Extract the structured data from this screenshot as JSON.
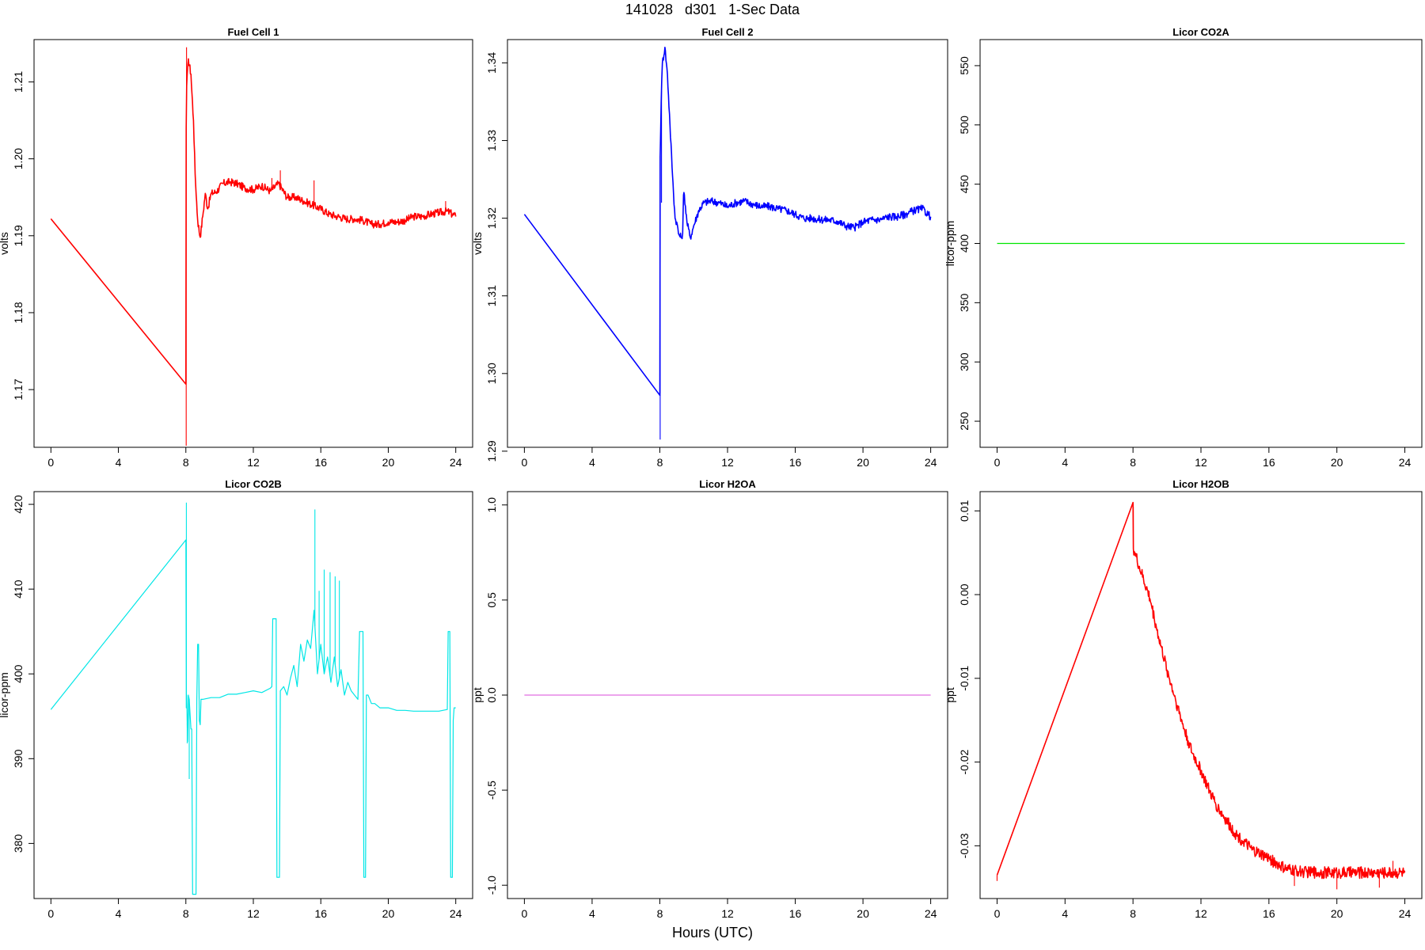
{
  "page": {
    "title": "141028   d301   1-Sec Data",
    "x_axis_title": "Hours (UTC)"
  },
  "chart_data": [
    {
      "type": "line",
      "title": "Fuel Cell 1",
      "ylabel": "volts",
      "xlim": [
        -1,
        25
      ],
      "ylim": [
        1.1625,
        1.2155
      ],
      "xticks": [
        0,
        4,
        8,
        12,
        16,
        20,
        24
      ],
      "yticks": [
        1.17,
        1.18,
        1.19,
        1.2,
        1.21
      ],
      "ytick_labels": [
        "1.17",
        "1.18",
        "1.19",
        "1.20",
        "1.21"
      ],
      "color": "#ff0000",
      "noise": 0.0005,
      "spikes": [
        [
          8.02,
          1.1627
        ],
        [
          8.04,
          1.2145
        ],
        [
          13.1,
          1.1975
        ],
        [
          13.6,
          1.1985
        ],
        [
          15.6,
          1.1972
        ],
        [
          23.4,
          1.1945
        ]
      ],
      "x": [
        0,
        8.0,
        8.02,
        8.05,
        8.15,
        8.3,
        8.45,
        8.55,
        8.7,
        8.85,
        9.0,
        9.15,
        9.3,
        9.5,
        9.8,
        10.2,
        10.6,
        11.0,
        11.5,
        12.0,
        12.5,
        13.0,
        13.5,
        14.0,
        14.5,
        15.0,
        15.5,
        16.0,
        16.5,
        17.0,
        17.5,
        18.0,
        18.5,
        19.0,
        19.5,
        20.0,
        20.5,
        21.0,
        21.5,
        22.0,
        22.5,
        23.0,
        23.5,
        24.0
      ],
      "y": [
        1.1922,
        1.1707,
        1.204,
        1.2095,
        1.213,
        1.211,
        1.205,
        1.198,
        1.192,
        1.1898,
        1.1925,
        1.1955,
        1.1935,
        1.1955,
        1.1957,
        1.1968,
        1.197,
        1.1968,
        1.1962,
        1.196,
        1.1965,
        1.1958,
        1.1968,
        1.195,
        1.195,
        1.1945,
        1.194,
        1.1935,
        1.1928,
        1.1925,
        1.1922,
        1.1922,
        1.192,
        1.1915,
        1.1915,
        1.1918,
        1.1918,
        1.192,
        1.1925,
        1.1925,
        1.1928,
        1.193,
        1.1932,
        1.1925
      ]
    },
    {
      "type": "line",
      "title": "Fuel Cell 2",
      "ylabel": "volts",
      "xlim": [
        -1,
        25
      ],
      "ylim": [
        1.2905,
        1.343
      ],
      "xticks": [
        0,
        4,
        8,
        12,
        16,
        20,
        24
      ],
      "yticks": [
        1.29,
        1.3,
        1.31,
        1.32,
        1.33,
        1.34
      ],
      "ytick_labels": [
        "1.29",
        "1.30",
        "1.31",
        "1.32",
        "1.33",
        "1.34"
      ],
      "color": "#0000ff",
      "noise": 0.0005,
      "spikes": [
        [
          8.02,
          1.2915
        ],
        [
          8.1,
          1.322
        ]
      ],
      "x": [
        0,
        8.0,
        8.02,
        8.08,
        8.15,
        8.3,
        8.45,
        8.6,
        8.75,
        8.9,
        9.0,
        9.1,
        9.25,
        9.35,
        9.4,
        9.45,
        9.6,
        9.8,
        10.0,
        10.3,
        10.6,
        11.0,
        11.5,
        12.0,
        12.5,
        13.0,
        13.5,
        14.0,
        14.5,
        15.0,
        15.5,
        16.0,
        16.5,
        17.0,
        17.5,
        18.0,
        18.5,
        19.0,
        19.5,
        20.0,
        20.5,
        21.0,
        21.5,
        22.0,
        22.5,
        23.0,
        23.5,
        24.0
      ],
      "y": [
        1.3205,
        1.2972,
        1.328,
        1.335,
        1.34,
        1.342,
        1.3385,
        1.332,
        1.3255,
        1.32,
        1.3195,
        1.318,
        1.3175,
        1.318,
        1.323,
        1.323,
        1.3195,
        1.3175,
        1.319,
        1.321,
        1.322,
        1.3222,
        1.322,
        1.3215,
        1.322,
        1.3222,
        1.3218,
        1.3215,
        1.3215,
        1.3212,
        1.321,
        1.3205,
        1.32,
        1.32,
        1.3198,
        1.3198,
        1.3196,
        1.319,
        1.3188,
        1.3195,
        1.3198,
        1.3198,
        1.3202,
        1.3202,
        1.3205,
        1.321,
        1.3212,
        1.3202
      ]
    },
    {
      "type": "line",
      "title": "Licor CO2A",
      "ylabel": "licor-ppm",
      "xlim": [
        -1,
        25
      ],
      "ylim": [
        228,
        572
      ],
      "xticks": [
        0,
        4,
        8,
        12,
        16,
        20,
        24
      ],
      "yticks": [
        250,
        300,
        350,
        400,
        450,
        500,
        550
      ],
      "ytick_labels": [
        "250",
        "300",
        "350",
        "400",
        "450",
        "500",
        "550"
      ],
      "color": "#00e600",
      "noise": 0,
      "spikes": [],
      "x": [
        0,
        24
      ],
      "y": [
        400,
        400
      ]
    },
    {
      "type": "line",
      "title": "Licor CO2B",
      "ylabel": "licor-ppm",
      "xlim": [
        -1,
        25
      ],
      "ylim": [
        373.5,
        421.5
      ],
      "xticks": [
        0,
        4,
        8,
        12,
        16,
        20,
        24
      ],
      "yticks": [
        380,
        390,
        400,
        410,
        420
      ],
      "ytick_labels": [
        "380",
        "390",
        "400",
        "410",
        "420"
      ],
      "color": "#00e6e6",
      "noise": 0,
      "spikes": [
        [
          8.03,
          420.2
        ],
        [
          8.08,
          391.8
        ],
        [
          8.2,
          387.6
        ],
        [
          15.65,
          419.4
        ],
        [
          15.9,
          409.8
        ],
        [
          16.2,
          412.3
        ],
        [
          16.55,
          412.0
        ],
        [
          16.85,
          411.5
        ],
        [
          17.1,
          411.0
        ]
      ],
      "x": [
        0,
        8.0,
        8.03,
        8.05,
        8.1,
        8.15,
        8.2,
        8.3,
        8.35,
        8.4,
        8.45,
        8.55,
        8.6,
        8.65,
        8.7,
        8.75,
        8.8,
        8.85,
        8.9,
        9.0,
        9.5,
        10.0,
        10.5,
        11.0,
        11.5,
        12.0,
        12.5,
        13.0,
        13.1,
        13.15,
        13.35,
        13.4,
        13.5,
        13.55,
        13.6,
        13.8,
        14.0,
        14.2,
        14.4,
        14.6,
        14.8,
        15.0,
        15.2,
        15.4,
        15.6,
        15.8,
        16.0,
        16.2,
        16.4,
        16.6,
        16.8,
        17.0,
        17.2,
        17.4,
        17.6,
        17.8,
        18.0,
        18.2,
        18.3,
        18.35,
        18.5,
        18.55,
        18.65,
        18.7,
        18.8,
        19.0,
        19.2,
        19.5,
        20.0,
        20.5,
        21.0,
        21.5,
        22.0,
        22.5,
        23.0,
        23.5,
        23.55,
        23.65,
        23.7,
        23.8,
        23.85,
        23.9,
        24.0
      ],
      "y": [
        395.8,
        415.8,
        396.0,
        397.5,
        392.0,
        397.5,
        397.0,
        393.5,
        393.5,
        374.0,
        374.0,
        374.0,
        374.0,
        397.0,
        403.5,
        403.5,
        394.5,
        394.0,
        397.0,
        397.0,
        397.2,
        397.2,
        397.6,
        397.6,
        397.8,
        398.0,
        397.8,
        398.3,
        398.5,
        406.5,
        406.5,
        376.0,
        376.0,
        376.0,
        398.0,
        398.5,
        397.5,
        399.5,
        401.0,
        398.5,
        403.5,
        401.5,
        404.0,
        403.0,
        407.5,
        400.0,
        403.5,
        400.0,
        402.0,
        399.0,
        402.0,
        398.5,
        400.5,
        397.5,
        399.0,
        398.0,
        397.5,
        397.0,
        405.0,
        405.0,
        405.0,
        376.0,
        376.0,
        397.5,
        397.5,
        396.5,
        396.5,
        396.0,
        396.0,
        395.7,
        395.7,
        395.6,
        395.6,
        395.6,
        395.6,
        395.8,
        405.0,
        405.0,
        376.0,
        376.0,
        394.5,
        396.0,
        396.0
      ]
    },
    {
      "type": "line",
      "title": "Licor H2OA",
      "ylabel": "ppt",
      "xlim": [
        -1,
        25
      ],
      "ylim": [
        -1.07,
        1.07
      ],
      "xticks": [
        0,
        4,
        8,
        12,
        16,
        20,
        24
      ],
      "yticks": [
        -1,
        -0.5,
        0,
        0.5,
        1
      ],
      "ytick_labels": [
        "-1.0",
        "-0.5",
        "0.0",
        "0.5",
        "1.0"
      ],
      "color": "#e06ee0",
      "noise": 0,
      "spikes": [],
      "x": [
        0,
        24
      ],
      "y": [
        0,
        0
      ]
    },
    {
      "type": "line",
      "title": "Licor H2OB",
      "ylabel": "ppt",
      "xlim": [
        -1,
        25
      ],
      "ylim": [
        -0.0363,
        0.0123
      ],
      "xticks": [
        0,
        4,
        8,
        12,
        16,
        20,
        24
      ],
      "yticks": [
        -0.03,
        -0.02,
        -0.01,
        0,
        0.01
      ],
      "ytick_labels": [
        "-0.03",
        "-0.02",
        "-0.01",
        "0.00",
        "0.01"
      ],
      "color": "#ff0000",
      "noise": 0.0007,
      "spikes": [
        [
          0,
          -0.0342
        ],
        [
          8.02,
          0.0105
        ],
        [
          17.5,
          -0.0348
        ],
        [
          20.0,
          -0.0352
        ],
        [
          22.5,
          -0.035
        ],
        [
          23.3,
          -0.0318
        ]
      ],
      "x": [
        0,
        8.0,
        8.02,
        8.1,
        8.5,
        9.0,
        9.5,
        10.0,
        10.5,
        11.0,
        11.5,
        12.0,
        12.5,
        13.0,
        13.5,
        14.0,
        14.5,
        15.0,
        15.5,
        16.0,
        16.5,
        17.0,
        18.0,
        19.0,
        20.0,
        21.0,
        22.0,
        23.0,
        24.0
      ],
      "y": [
        -0.0335,
        0.011,
        0.0055,
        0.005,
        0.0025,
        -0.0005,
        -0.005,
        -0.009,
        -0.0125,
        -0.016,
        -0.019,
        -0.021,
        -0.0235,
        -0.0255,
        -0.027,
        -0.0285,
        -0.0295,
        -0.0305,
        -0.031,
        -0.0315,
        -0.0322,
        -0.0328,
        -0.0331,
        -0.0332,
        -0.0332,
        -0.0332,
        -0.0332,
        -0.0332,
        -0.0332
      ]
    }
  ]
}
